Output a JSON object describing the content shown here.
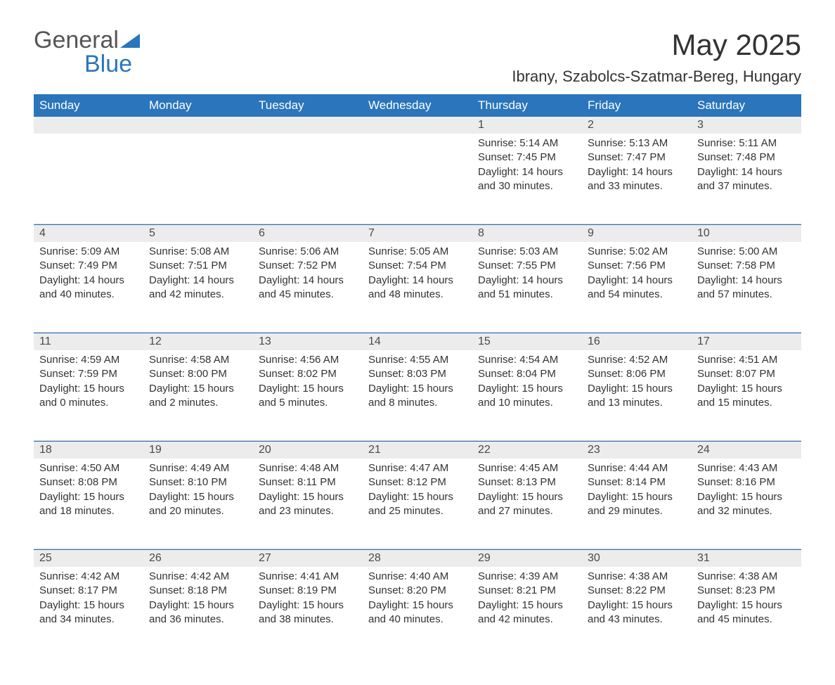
{
  "brand": {
    "name_part1": "General",
    "name_part2": "Blue",
    "accent_color": "#2a75bb",
    "text_color": "#555555"
  },
  "title": "May 2025",
  "subtitle": "Ibrany, Szabolcs-Szatmar-Bereg, Hungary",
  "columns": [
    "Sunday",
    "Monday",
    "Tuesday",
    "Wednesday",
    "Thursday",
    "Friday",
    "Saturday"
  ],
  "colors": {
    "header_bg": "#2a75bb",
    "header_fg": "#ffffff",
    "daynum_bg": "#ececec",
    "text": "#333333",
    "rule_top": "#d0d0d0",
    "rule_bottom": "#2a75bb",
    "page_bg": "#ffffff"
  },
  "fonts": {
    "title_size_pt": 32,
    "subtitle_size_pt": 17,
    "header_size_pt": 13,
    "daynum_size_pt": 12,
    "body_size_pt": 11
  },
  "weeks": [
    [
      null,
      null,
      null,
      null,
      {
        "day": "1",
        "sunrise": "Sunrise: 5:14 AM",
        "sunset": "Sunset: 7:45 PM",
        "daylight1": "Daylight: 14 hours",
        "daylight2": "and 30 minutes."
      },
      {
        "day": "2",
        "sunrise": "Sunrise: 5:13 AM",
        "sunset": "Sunset: 7:47 PM",
        "daylight1": "Daylight: 14 hours",
        "daylight2": "and 33 minutes."
      },
      {
        "day": "3",
        "sunrise": "Sunrise: 5:11 AM",
        "sunset": "Sunset: 7:48 PM",
        "daylight1": "Daylight: 14 hours",
        "daylight2": "and 37 minutes."
      }
    ],
    [
      {
        "day": "4",
        "sunrise": "Sunrise: 5:09 AM",
        "sunset": "Sunset: 7:49 PM",
        "daylight1": "Daylight: 14 hours",
        "daylight2": "and 40 minutes."
      },
      {
        "day": "5",
        "sunrise": "Sunrise: 5:08 AM",
        "sunset": "Sunset: 7:51 PM",
        "daylight1": "Daylight: 14 hours",
        "daylight2": "and 42 minutes."
      },
      {
        "day": "6",
        "sunrise": "Sunrise: 5:06 AM",
        "sunset": "Sunset: 7:52 PM",
        "daylight1": "Daylight: 14 hours",
        "daylight2": "and 45 minutes."
      },
      {
        "day": "7",
        "sunrise": "Sunrise: 5:05 AM",
        "sunset": "Sunset: 7:54 PM",
        "daylight1": "Daylight: 14 hours",
        "daylight2": "and 48 minutes."
      },
      {
        "day": "8",
        "sunrise": "Sunrise: 5:03 AM",
        "sunset": "Sunset: 7:55 PM",
        "daylight1": "Daylight: 14 hours",
        "daylight2": "and 51 minutes."
      },
      {
        "day": "9",
        "sunrise": "Sunrise: 5:02 AM",
        "sunset": "Sunset: 7:56 PM",
        "daylight1": "Daylight: 14 hours",
        "daylight2": "and 54 minutes."
      },
      {
        "day": "10",
        "sunrise": "Sunrise: 5:00 AM",
        "sunset": "Sunset: 7:58 PM",
        "daylight1": "Daylight: 14 hours",
        "daylight2": "and 57 minutes."
      }
    ],
    [
      {
        "day": "11",
        "sunrise": "Sunrise: 4:59 AM",
        "sunset": "Sunset: 7:59 PM",
        "daylight1": "Daylight: 15 hours",
        "daylight2": "and 0 minutes."
      },
      {
        "day": "12",
        "sunrise": "Sunrise: 4:58 AM",
        "sunset": "Sunset: 8:00 PM",
        "daylight1": "Daylight: 15 hours",
        "daylight2": "and 2 minutes."
      },
      {
        "day": "13",
        "sunrise": "Sunrise: 4:56 AM",
        "sunset": "Sunset: 8:02 PM",
        "daylight1": "Daylight: 15 hours",
        "daylight2": "and 5 minutes."
      },
      {
        "day": "14",
        "sunrise": "Sunrise: 4:55 AM",
        "sunset": "Sunset: 8:03 PM",
        "daylight1": "Daylight: 15 hours",
        "daylight2": "and 8 minutes."
      },
      {
        "day": "15",
        "sunrise": "Sunrise: 4:54 AM",
        "sunset": "Sunset: 8:04 PM",
        "daylight1": "Daylight: 15 hours",
        "daylight2": "and 10 minutes."
      },
      {
        "day": "16",
        "sunrise": "Sunrise: 4:52 AM",
        "sunset": "Sunset: 8:06 PM",
        "daylight1": "Daylight: 15 hours",
        "daylight2": "and 13 minutes."
      },
      {
        "day": "17",
        "sunrise": "Sunrise: 4:51 AM",
        "sunset": "Sunset: 8:07 PM",
        "daylight1": "Daylight: 15 hours",
        "daylight2": "and 15 minutes."
      }
    ],
    [
      {
        "day": "18",
        "sunrise": "Sunrise: 4:50 AM",
        "sunset": "Sunset: 8:08 PM",
        "daylight1": "Daylight: 15 hours",
        "daylight2": "and 18 minutes."
      },
      {
        "day": "19",
        "sunrise": "Sunrise: 4:49 AM",
        "sunset": "Sunset: 8:10 PM",
        "daylight1": "Daylight: 15 hours",
        "daylight2": "and 20 minutes."
      },
      {
        "day": "20",
        "sunrise": "Sunrise: 4:48 AM",
        "sunset": "Sunset: 8:11 PM",
        "daylight1": "Daylight: 15 hours",
        "daylight2": "and 23 minutes."
      },
      {
        "day": "21",
        "sunrise": "Sunrise: 4:47 AM",
        "sunset": "Sunset: 8:12 PM",
        "daylight1": "Daylight: 15 hours",
        "daylight2": "and 25 minutes."
      },
      {
        "day": "22",
        "sunrise": "Sunrise: 4:45 AM",
        "sunset": "Sunset: 8:13 PM",
        "daylight1": "Daylight: 15 hours",
        "daylight2": "and 27 minutes."
      },
      {
        "day": "23",
        "sunrise": "Sunrise: 4:44 AM",
        "sunset": "Sunset: 8:14 PM",
        "daylight1": "Daylight: 15 hours",
        "daylight2": "and 29 minutes."
      },
      {
        "day": "24",
        "sunrise": "Sunrise: 4:43 AM",
        "sunset": "Sunset: 8:16 PM",
        "daylight1": "Daylight: 15 hours",
        "daylight2": "and 32 minutes."
      }
    ],
    [
      {
        "day": "25",
        "sunrise": "Sunrise: 4:42 AM",
        "sunset": "Sunset: 8:17 PM",
        "daylight1": "Daylight: 15 hours",
        "daylight2": "and 34 minutes."
      },
      {
        "day": "26",
        "sunrise": "Sunrise: 4:42 AM",
        "sunset": "Sunset: 8:18 PM",
        "daylight1": "Daylight: 15 hours",
        "daylight2": "and 36 minutes."
      },
      {
        "day": "27",
        "sunrise": "Sunrise: 4:41 AM",
        "sunset": "Sunset: 8:19 PM",
        "daylight1": "Daylight: 15 hours",
        "daylight2": "and 38 minutes."
      },
      {
        "day": "28",
        "sunrise": "Sunrise: 4:40 AM",
        "sunset": "Sunset: 8:20 PM",
        "daylight1": "Daylight: 15 hours",
        "daylight2": "and 40 minutes."
      },
      {
        "day": "29",
        "sunrise": "Sunrise: 4:39 AM",
        "sunset": "Sunset: 8:21 PM",
        "daylight1": "Daylight: 15 hours",
        "daylight2": "and 42 minutes."
      },
      {
        "day": "30",
        "sunrise": "Sunrise: 4:38 AM",
        "sunset": "Sunset: 8:22 PM",
        "daylight1": "Daylight: 15 hours",
        "daylight2": "and 43 minutes."
      },
      {
        "day": "31",
        "sunrise": "Sunrise: 4:38 AM",
        "sunset": "Sunset: 8:23 PM",
        "daylight1": "Daylight: 15 hours",
        "daylight2": "and 45 minutes."
      }
    ]
  ]
}
